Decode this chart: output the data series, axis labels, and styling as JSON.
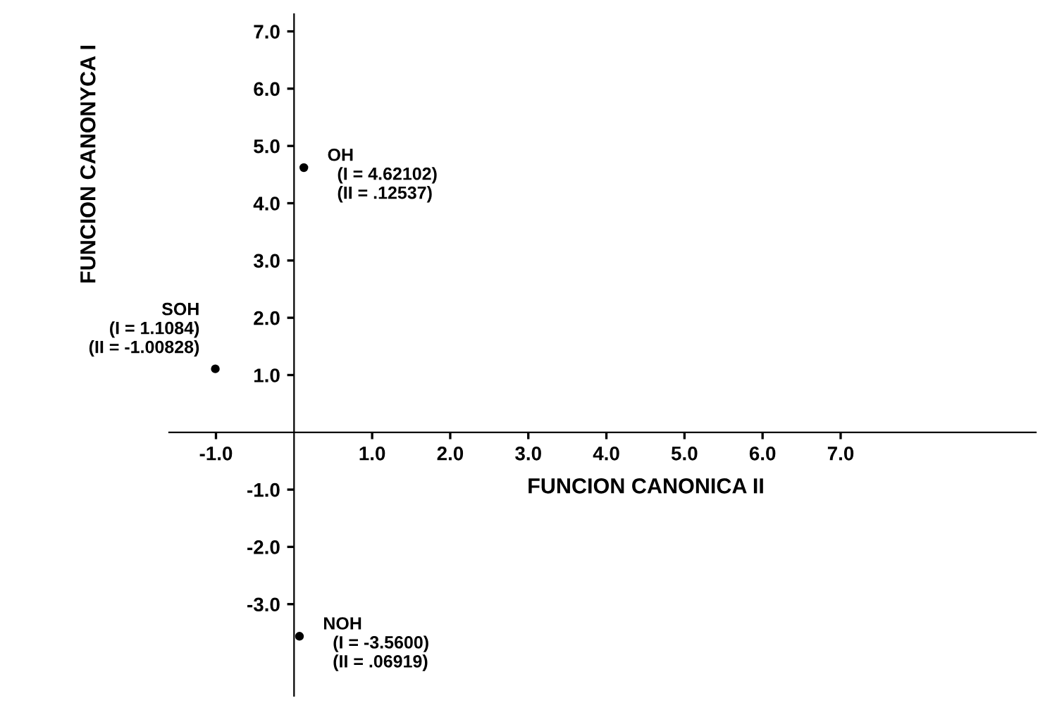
{
  "chart_data": {
    "type": "scatter",
    "xlabel": "FUNCION CANONICA II",
    "ylabel": "FUNCION CANONYCA I",
    "x": [
      0.12537,
      -1.00828,
      0.06919
    ],
    "series": [
      {
        "color": "#000000",
        "values": [
          4.62102,
          1.1084,
          -3.56
        ]
      }
    ],
    "marker": "circle",
    "annotations": [
      {
        "text": "OH\n  (I = 4.62102)\n  (II = .12537)",
        "x": 0.12537,
        "y": 4.62102
      },
      {
        "text": "SOH\n(I = 1.1084)\n(II = -1.00828)",
        "x": -1.00828,
        "y": 1.1084
      },
      {
        "text": "NOH\n  (I = -3.5600)\n  (II = .06919)",
        "x": 0.06919,
        "y": -3.56
      }
    ],
    "xlim": [
      -1.6,
      9.5
    ],
    "ylim": [
      -4.6,
      7.3
    ],
    "xticks": [
      {
        "value": -1,
        "label": "-1.0"
      },
      {
        "value": 1,
        "label": "1.0"
      },
      {
        "value": 2,
        "label": "2.0"
      },
      {
        "value": 3,
        "label": "3.0"
      },
      {
        "value": 4,
        "label": "4.0"
      },
      {
        "value": 5,
        "label": "5.0"
      },
      {
        "value": 6,
        "label": "6.0"
      },
      {
        "value": 7,
        "label": "7.0"
      }
    ],
    "yticks": [
      {
        "value": -3,
        "label": "-3.0"
      },
      {
        "value": -2,
        "label": "-2.0"
      },
      {
        "value": -1,
        "label": "-1.0"
      },
      {
        "value": 1,
        "label": "1.0"
      },
      {
        "value": 2,
        "label": "2.0"
      },
      {
        "value": 3,
        "label": "3.0"
      },
      {
        "value": 4,
        "label": "4.0"
      },
      {
        "value": 5,
        "label": "5.0"
      },
      {
        "value": 6,
        "label": "6.0"
      },
      {
        "value": 7,
        "label": "7.0"
      }
    ],
    "grid": false,
    "legend": false
  }
}
